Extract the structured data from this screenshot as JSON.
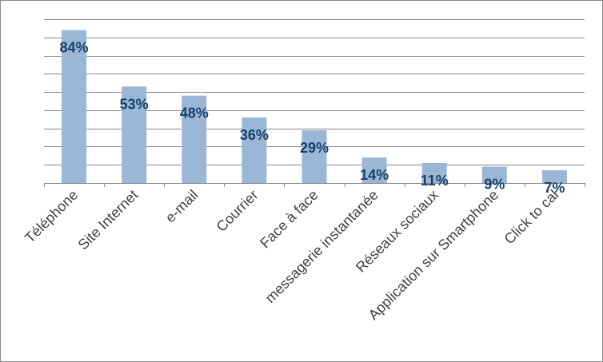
{
  "chart_data": {
    "type": "bar",
    "title": "",
    "xlabel": "",
    "ylabel": "",
    "categories": [
      "Téléphone",
      "Site Internet",
      "e-mail",
      "Courrier",
      "Face à face",
      "messagerie instantanée",
      "Réseaux sociaux",
      "Application sur Smartphone",
      "Click to cal"
    ],
    "values": [
      84,
      53,
      48,
      36,
      29,
      14,
      11,
      9,
      7
    ],
    "data_labels": [
      "84%",
      "53%",
      "48%",
      "36%",
      "29%",
      "14%",
      "11%",
      "9%",
      "7%"
    ],
    "ylim": [
      0,
      90
    ],
    "grid": true,
    "y_tick_labels_shown": false,
    "legend": "none",
    "bar_color": "#9bb7d6",
    "label_color": "#17406d"
  }
}
